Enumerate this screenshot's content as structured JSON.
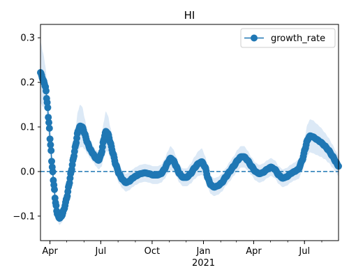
{
  "chart_data": {
    "type": "line",
    "title": "HI",
    "xlabel": "",
    "ylabel": "",
    "x_start": "2020-03-15",
    "x_end": "2021-08-31",
    "ylim": [
      -0.155,
      0.33
    ],
    "y_ticks": [
      -0.1,
      0.0,
      0.1,
      0.2,
      0.3
    ],
    "y_tick_labels": [
      "−0.1",
      "0.0",
      "0.1",
      "0.2",
      "0.3"
    ],
    "x_ticks": [
      {
        "date": "2020-04-01",
        "label": "Apr"
      },
      {
        "date": "2020-07-01",
        "label": "Jul"
      },
      {
        "date": "2020-10-01",
        "label": "Oct"
      },
      {
        "date": "2021-01-01",
        "label": "Jan"
      },
      {
        "date": "2021-04-01",
        "label": "Apr"
      },
      {
        "date": "2021-07-01",
        "label": "Jul"
      }
    ],
    "x_year_label": {
      "date": "2021-01-01",
      "label": "2021"
    },
    "reference_line": {
      "y": 0.0,
      "style": "dashed"
    },
    "grid": false,
    "legend": {
      "position": "top-right",
      "entries": [
        "growth_rate"
      ]
    },
    "colors": {
      "line": "#1f77b4",
      "band": "#dce9f6",
      "axis": "#000000"
    },
    "series": [
      {
        "name": "growth_rate",
        "points": [
          [
            "2020-03-15",
            0.222
          ],
          [
            "2020-03-20",
            0.205
          ],
          [
            "2020-03-24",
            0.19
          ],
          [
            "2020-03-27",
            0.155
          ],
          [
            "2020-03-30",
            0.11
          ],
          [
            "2020-04-02",
            0.06
          ],
          [
            "2020-04-05",
            0.01
          ],
          [
            "2020-04-08",
            -0.03
          ],
          [
            "2020-04-11",
            -0.07
          ],
          [
            "2020-04-14",
            -0.095
          ],
          [
            "2020-04-18",
            -0.105
          ],
          [
            "2020-04-22",
            -0.1
          ],
          [
            "2020-04-26",
            -0.085
          ],
          [
            "2020-05-01",
            -0.06
          ],
          [
            "2020-05-05",
            -0.03
          ],
          [
            "2020-05-09",
            0.0
          ],
          [
            "2020-05-13",
            0.03
          ],
          [
            "2020-05-17",
            0.06
          ],
          [
            "2020-05-21",
            0.09
          ],
          [
            "2020-05-25",
            0.102
          ],
          [
            "2020-05-29",
            0.1
          ],
          [
            "2020-06-02",
            0.085
          ],
          [
            "2020-06-07",
            0.065
          ],
          [
            "2020-06-12",
            0.05
          ],
          [
            "2020-06-17",
            0.04
          ],
          [
            "2020-06-22",
            0.03
          ],
          [
            "2020-06-27",
            0.025
          ],
          [
            "2020-07-02",
            0.04
          ],
          [
            "2020-07-06",
            0.07
          ],
          [
            "2020-07-10",
            0.09
          ],
          [
            "2020-07-14",
            0.085
          ],
          [
            "2020-07-18",
            0.065
          ],
          [
            "2020-07-23",
            0.04
          ],
          [
            "2020-07-28",
            0.015
          ],
          [
            "2020-08-03",
            -0.005
          ],
          [
            "2020-08-09",
            -0.018
          ],
          [
            "2020-08-15",
            -0.025
          ],
          [
            "2020-08-21",
            -0.022
          ],
          [
            "2020-08-27",
            -0.015
          ],
          [
            "2020-09-02",
            -0.01
          ],
          [
            "2020-09-10",
            -0.005
          ],
          [
            "2020-09-18",
            -0.003
          ],
          [
            "2020-09-26",
            -0.005
          ],
          [
            "2020-10-03",
            -0.008
          ],
          [
            "2020-10-10",
            -0.008
          ],
          [
            "2020-10-17",
            -0.005
          ],
          [
            "2020-10-23",
            0.005
          ],
          [
            "2020-10-29",
            0.02
          ],
          [
            "2020-11-03",
            0.03
          ],
          [
            "2020-11-08",
            0.025
          ],
          [
            "2020-11-13",
            0.012
          ],
          [
            "2020-11-19",
            -0.005
          ],
          [
            "2020-11-25",
            -0.013
          ],
          [
            "2020-12-02",
            -0.013
          ],
          [
            "2020-12-09",
            -0.005
          ],
          [
            "2020-12-16",
            0.008
          ],
          [
            "2020-12-23",
            0.018
          ],
          [
            "2020-12-29",
            0.022
          ],
          [
            "2021-01-04",
            0.01
          ],
          [
            "2021-01-09",
            -0.015
          ],
          [
            "2021-01-14",
            -0.03
          ],
          [
            "2021-01-20",
            -0.035
          ],
          [
            "2021-01-27",
            -0.032
          ],
          [
            "2021-02-03",
            -0.025
          ],
          [
            "2021-02-10",
            -0.012
          ],
          [
            "2021-02-17",
            0.0
          ],
          [
            "2021-02-24",
            0.012
          ],
          [
            "2021-03-03",
            0.025
          ],
          [
            "2021-03-09",
            0.033
          ],
          [
            "2021-03-15",
            0.033
          ],
          [
            "2021-03-21",
            0.025
          ],
          [
            "2021-03-28",
            0.012
          ],
          [
            "2021-04-04",
            0.0
          ],
          [
            "2021-04-11",
            -0.005
          ],
          [
            "2021-04-18",
            -0.002
          ],
          [
            "2021-04-25",
            0.005
          ],
          [
            "2021-05-02",
            0.01
          ],
          [
            "2021-05-09",
            0.005
          ],
          [
            "2021-05-16",
            -0.008
          ],
          [
            "2021-05-23",
            -0.015
          ],
          [
            "2021-05-30",
            -0.012
          ],
          [
            "2021-06-06",
            -0.005
          ],
          [
            "2021-06-13",
            0.0
          ],
          [
            "2021-06-20",
            0.005
          ],
          [
            "2021-06-27",
            0.025
          ],
          [
            "2021-07-02",
            0.05
          ],
          [
            "2021-07-06",
            0.07
          ],
          [
            "2021-07-11",
            0.08
          ],
          [
            "2021-07-16",
            0.078
          ],
          [
            "2021-07-23",
            0.072
          ],
          [
            "2021-07-30",
            0.066
          ],
          [
            "2021-08-06",
            0.058
          ],
          [
            "2021-08-13",
            0.048
          ],
          [
            "2021-08-20",
            0.035
          ],
          [
            "2021-08-26",
            0.022
          ],
          [
            "2021-08-31",
            0.012
          ]
        ],
        "band_halfwidth": [
          0.07,
          0.06,
          0.045,
          0.04,
          0.035,
          0.03,
          0.025,
          0.02,
          0.018,
          0.015,
          0.015,
          0.015,
          0.018,
          0.02,
          0.025,
          0.03,
          0.035,
          0.04,
          0.045,
          0.048,
          0.045,
          0.035,
          0.025,
          0.02,
          0.018,
          0.018,
          0.02,
          0.03,
          0.04,
          0.045,
          0.04,
          0.035,
          0.03,
          0.025,
          0.022,
          0.02,
          0.02,
          0.02,
          0.02,
          0.02,
          0.02,
          0.02,
          0.02,
          0.02,
          0.02,
          0.02,
          0.022,
          0.025,
          0.027,
          0.025,
          0.022,
          0.02,
          0.02,
          0.02,
          0.022,
          0.025,
          0.028,
          0.03,
          0.025,
          0.022,
          0.02,
          0.02,
          0.02,
          0.02,
          0.02,
          0.022,
          0.022,
          0.024,
          0.024,
          0.024,
          0.022,
          0.02,
          0.02,
          0.02,
          0.02,
          0.02,
          0.02,
          0.02,
          0.02,
          0.02,
          0.02,
          0.02,
          0.02,
          0.022,
          0.025,
          0.03,
          0.035,
          0.037,
          0.037,
          0.035,
          0.033,
          0.03,
          0.028,
          0.026,
          0.024,
          0.022
        ]
      }
    ]
  }
}
